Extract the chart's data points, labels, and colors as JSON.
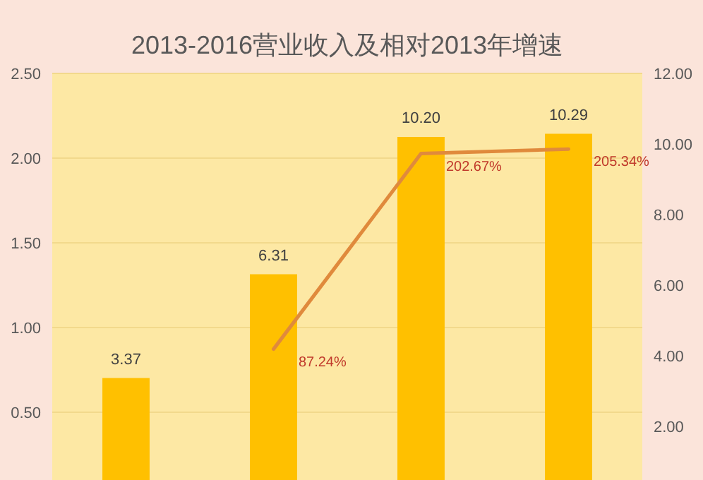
{
  "chart_data": {
    "type": "bar",
    "title": "2013-2016营业收入及相对2013年增速",
    "categories": [
      null,
      null,
      null,
      null
    ],
    "series": [
      {
        "axis": "y2",
        "color": "#ffc000",
        "values": [
          3.37,
          6.31,
          10.2,
          10.29
        ],
        "value_labels": [
          "3.37",
          "6.31",
          "10.20",
          "10.29"
        ]
      },
      {
        "type": "line",
        "axis": "y",
        "color": "#e08a3c",
        "values": [
          null,
          0.8724,
          2.0267,
          2.0534
        ],
        "value_labels": [
          null,
          "87.24%",
          "202.67%",
          "205.34%"
        ]
      }
    ],
    "ylim": [
      0.1,
      2.5
    ],
    "yticks": [
      {
        "value": 0.5,
        "label": "0.50"
      },
      {
        "value": 1,
        "label": "1.00"
      },
      {
        "value": 1.5,
        "label": "1.50"
      },
      {
        "value": 2,
        "label": "2.00"
      },
      {
        "value": 2.5,
        "label": "2.50"
      }
    ],
    "y2lim": [
      0.48,
      12
    ],
    "y2ticks": [
      {
        "value": 2,
        "label": "2.00"
      },
      {
        "value": 4,
        "label": "4.00"
      },
      {
        "value": 6,
        "label": "6.00"
      },
      {
        "value": 8,
        "label": "8.00"
      },
      {
        "value": 10,
        "label": "10.00"
      },
      {
        "value": 12,
        "label": "12.00"
      }
    ],
    "grid": "y"
  }
}
